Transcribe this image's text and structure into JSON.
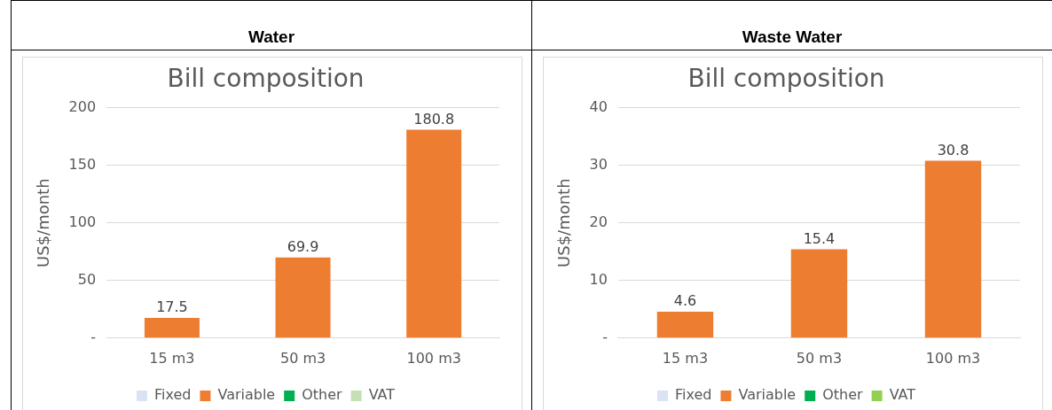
{
  "chart_data": [
    {
      "type": "bar",
      "title": "Water",
      "subtitle": "Bill composition",
      "ylabel": "US$/month",
      "categories": [
        "15 m3",
        "50 m3",
        "100 m3"
      ],
      "stacked": true,
      "ylim": [
        0,
        200
      ],
      "yticks": [
        {
          "value": 0,
          "label": "-"
        },
        50,
        100,
        150,
        200
      ],
      "grid": "y",
      "legend": "bottom",
      "data_labels": true,
      "series": [
        {
          "name": "Fixed",
          "color": "#dae3f3",
          "values": [
            null,
            null,
            null
          ]
        },
        {
          "name": "Variable",
          "color": "#ed7d31",
          "values": [
            17.5,
            69.9,
            180.8
          ]
        },
        {
          "name": "Other",
          "color": "#00b050",
          "values": [
            null,
            null,
            null
          ]
        },
        {
          "name": "VAT",
          "color": "#c5e0b4",
          "values": [
            null,
            null,
            null
          ]
        }
      ]
    },
    {
      "type": "bar",
      "title": "Waste Water",
      "subtitle": "Bill composition",
      "ylabel": "US$/month",
      "categories": [
        "15 m3",
        "50 m3",
        "100 m3"
      ],
      "stacked": true,
      "ylim": [
        0,
        40
      ],
      "yticks": [
        {
          "value": 0,
          "label": "-"
        },
        10,
        20,
        30,
        40
      ],
      "grid": "y",
      "legend": "bottom",
      "data_labels": true,
      "series": [
        {
          "name": "Fixed",
          "color": "#dae3f3",
          "values": [
            null,
            null,
            null
          ]
        },
        {
          "name": "Variable",
          "color": "#ed7d31",
          "values": [
            4.6,
            15.4,
            30.8
          ]
        },
        {
          "name": "Other",
          "color": "#00b050",
          "values": [
            null,
            null,
            null
          ]
        },
        {
          "name": "VAT",
          "color": "#92d050",
          "values": [
            null,
            null,
            null
          ]
        }
      ]
    }
  ]
}
